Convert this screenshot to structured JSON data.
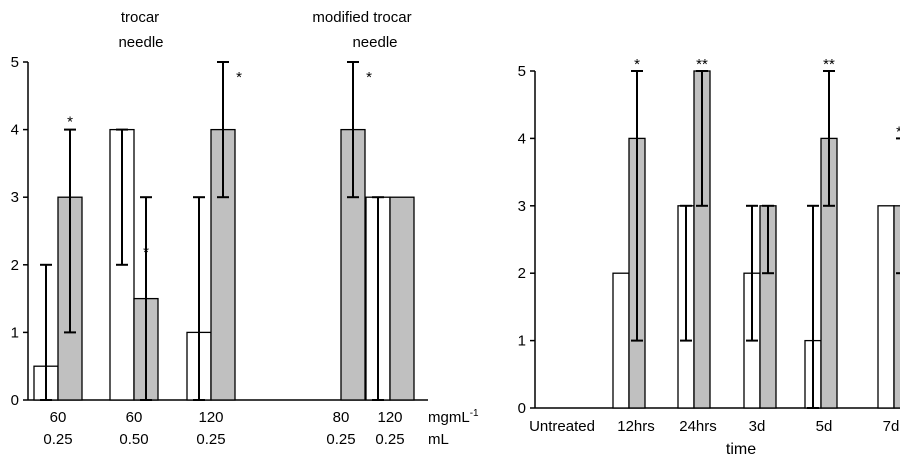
{
  "colors": {
    "open_bar": "#ffffff",
    "filled_bar": "#c0c0c0",
    "stroke": "#000000"
  },
  "chart_data": [
    {
      "type": "bar",
      "group_labels": [
        "trocar needle",
        "modified trocar needle"
      ],
      "categories": [
        {
          "dose": "60",
          "volume": "0.25"
        },
        {
          "dose": "60",
          "volume": "0.50"
        },
        {
          "dose": "120",
          "volume": "0.25"
        },
        {
          "dose": "80",
          "volume": "0.25"
        },
        {
          "dose": "120",
          "volume": "0.25"
        }
      ],
      "dose_unit": "mgmL",
      "dose_unit_exp": "-1",
      "volume_unit": "mL",
      "series": [
        {
          "values": [
            0.5,
            4,
            1,
            null,
            3
          ],
          "error_low": [
            0,
            2,
            0,
            null,
            0
          ],
          "error_high": [
            2,
            4,
            3,
            null,
            3
          ]
        },
        {
          "values": [
            3,
            1.5,
            4,
            4,
            3
          ],
          "error_low": [
            1,
            0,
            3,
            3,
            3
          ],
          "error_high": [
            4,
            3,
            5,
            5,
            3
          ]
        }
      ],
      "annotations": [
        "*",
        "*",
        "*",
        "*",
        ""
      ],
      "yticks": [
        "0",
        "1",
        "2",
        "3",
        "4",
        "5"
      ],
      "ylim": [
        0,
        5
      ]
    },
    {
      "type": "bar",
      "categories": [
        "Untreated",
        "12hrs",
        "24hrs",
        "3d",
        "5d",
        "7d"
      ],
      "xlabel": "time",
      "series": [
        {
          "values": [
            null,
            2,
            3,
            2,
            1,
            3
          ],
          "error_low": [
            null,
            2,
            1,
            1,
            0,
            3
          ],
          "error_high": [
            null,
            2,
            3,
            3,
            3,
            3
          ]
        },
        {
          "values": [
            null,
            4,
            5,
            3,
            4,
            3
          ],
          "error_low": [
            null,
            1,
            3,
            2,
            3,
            2
          ],
          "error_high": [
            null,
            5,
            5,
            3,
            5,
            4
          ]
        }
      ],
      "annotations": [
        "",
        "*",
        "**",
        "",
        "**",
        "**"
      ],
      "yticks": [
        "0",
        "1",
        "2",
        "3",
        "4",
        "5"
      ],
      "ylim": [
        0,
        5
      ]
    }
  ]
}
